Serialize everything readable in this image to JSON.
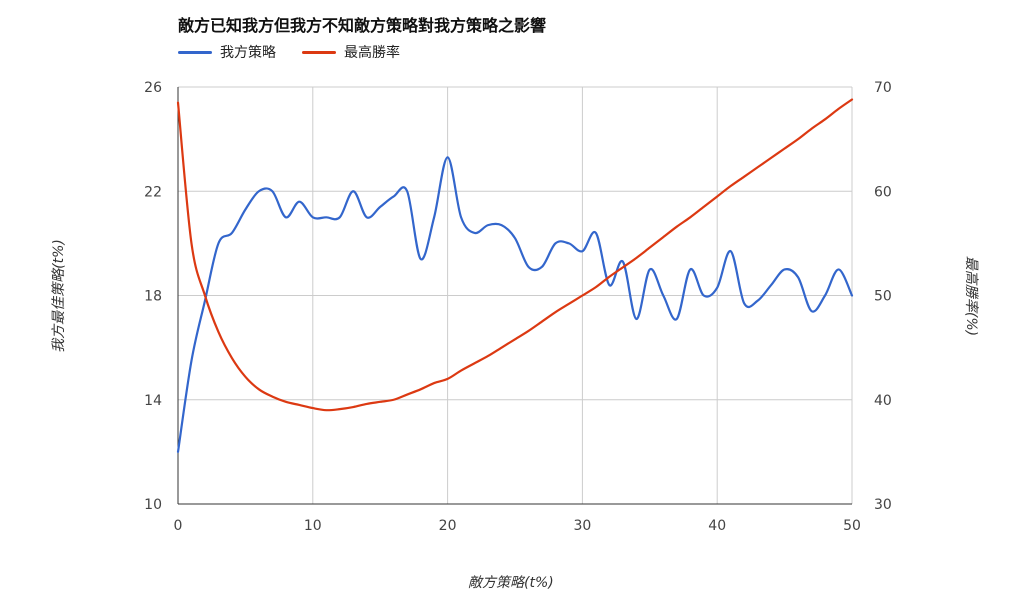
{
  "chart_data": {
    "type": "line",
    "title": "敵方已知我方但我方不知敵方策略對我方策略之影響",
    "xlabel": "敵方策略(t%)",
    "ylabel_left": "我方最佳策略(t%)",
    "ylabel_right": "最高勝率(%)",
    "xlim": [
      0,
      50
    ],
    "ylim_left": [
      10,
      26
    ],
    "ylim_right": [
      30,
      70
    ],
    "x_ticks": [
      "0",
      "10",
      "20",
      "30",
      "40",
      "50"
    ],
    "y_left_ticks": [
      "10",
      "14",
      "18",
      "22",
      "26"
    ],
    "y_right_ticks": [
      "30",
      "40",
      "50",
      "60",
      "70"
    ],
    "legend_position": "top-left",
    "grid": true,
    "series": [
      {
        "name": "我方策略",
        "axis": "left",
        "color": "#3366cc",
        "points": [
          [
            0,
            12.0
          ],
          [
            1,
            15.5
          ],
          [
            2,
            17.8
          ],
          [
            3,
            20.0
          ],
          [
            4,
            20.4
          ],
          [
            5,
            21.3
          ],
          [
            6,
            22.0
          ],
          [
            7,
            22.0
          ],
          [
            8,
            21.0
          ],
          [
            9,
            21.6
          ],
          [
            10,
            21.0
          ],
          [
            11,
            21.0
          ],
          [
            12,
            21.0
          ],
          [
            13,
            22.0
          ],
          [
            14,
            21.0
          ],
          [
            15,
            21.4
          ],
          [
            16,
            21.8
          ],
          [
            17,
            22.0
          ],
          [
            18,
            19.4
          ],
          [
            19,
            21.0
          ],
          [
            20,
            23.3
          ],
          [
            21,
            21.0
          ],
          [
            22,
            20.4
          ],
          [
            23,
            20.7
          ],
          [
            24,
            20.7
          ],
          [
            25,
            20.2
          ],
          [
            26,
            19.1
          ],
          [
            27,
            19.1
          ],
          [
            28,
            20.0
          ],
          [
            29,
            20.0
          ],
          [
            30,
            19.7
          ],
          [
            31,
            20.4
          ],
          [
            32,
            18.4
          ],
          [
            33,
            19.3
          ],
          [
            34,
            17.1
          ],
          [
            35,
            19.0
          ],
          [
            36,
            18.0
          ],
          [
            37,
            17.1
          ],
          [
            38,
            19.0
          ],
          [
            39,
            18.0
          ],
          [
            40,
            18.3
          ],
          [
            41,
            19.7
          ],
          [
            42,
            17.7
          ],
          [
            43,
            17.8
          ],
          [
            44,
            18.4
          ],
          [
            45,
            19.0
          ],
          [
            46,
            18.7
          ],
          [
            47,
            17.4
          ],
          [
            48,
            18.0
          ],
          [
            49,
            19.0
          ],
          [
            50,
            18.0
          ]
        ]
      },
      {
        "name": "最高勝率",
        "axis": "right",
        "color": "#dc3912",
        "points": [
          [
            0,
            68.5
          ],
          [
            1,
            55.0
          ],
          [
            2,
            50.0
          ],
          [
            3,
            46.5
          ],
          [
            4,
            44.0
          ],
          [
            5,
            42.2
          ],
          [
            6,
            41.0
          ],
          [
            7,
            40.3
          ],
          [
            8,
            39.8
          ],
          [
            9,
            39.5
          ],
          [
            10,
            39.2
          ],
          [
            11,
            39.0
          ],
          [
            12,
            39.1
          ],
          [
            13,
            39.3
          ],
          [
            14,
            39.6
          ],
          [
            15,
            39.8
          ],
          [
            16,
            40.0
          ],
          [
            17,
            40.5
          ],
          [
            18,
            41.0
          ],
          [
            19,
            41.6
          ],
          [
            20,
            42.0
          ],
          [
            21,
            42.8
          ],
          [
            22,
            43.5
          ],
          [
            23,
            44.2
          ],
          [
            24,
            45.0
          ],
          [
            25,
            45.8
          ],
          [
            26,
            46.6
          ],
          [
            27,
            47.5
          ],
          [
            28,
            48.4
          ],
          [
            29,
            49.2
          ],
          [
            30,
            50.0
          ],
          [
            31,
            50.8
          ],
          [
            32,
            51.8
          ],
          [
            33,
            52.7
          ],
          [
            34,
            53.6
          ],
          [
            35,
            54.6
          ],
          [
            36,
            55.6
          ],
          [
            37,
            56.6
          ],
          [
            38,
            57.5
          ],
          [
            39,
            58.5
          ],
          [
            40,
            59.5
          ],
          [
            41,
            60.5
          ],
          [
            42,
            61.4
          ],
          [
            43,
            62.3
          ],
          [
            44,
            63.2
          ],
          [
            45,
            64.1
          ],
          [
            46,
            65.0
          ],
          [
            47,
            66.0
          ],
          [
            48,
            66.9
          ],
          [
            49,
            67.9
          ],
          [
            50,
            68.8
          ]
        ]
      }
    ]
  }
}
